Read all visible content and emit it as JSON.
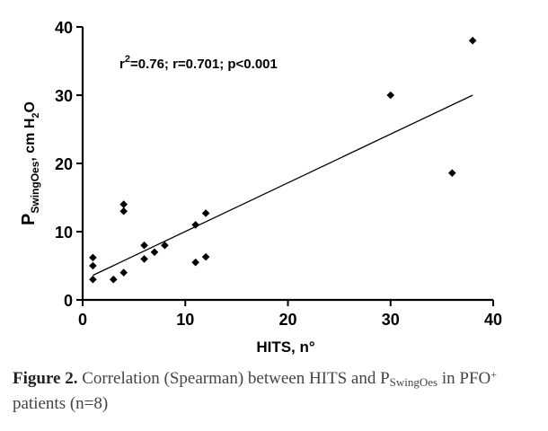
{
  "chart_data": {
    "type": "scatter",
    "xlabel": "HITS, n°",
    "ylabel": {
      "main": "P",
      "sub": "SwingOes",
      "unit_pre": ", cm H",
      "unit_sub": "2",
      "unit_post": "O"
    },
    "xlim": [
      0,
      40
    ],
    "ylim": [
      0,
      40
    ],
    "x_ticks": [
      0,
      10,
      20,
      30,
      40
    ],
    "y_ticks": [
      0,
      10,
      20,
      30,
      40
    ],
    "grid": false,
    "annotation": {
      "r2_prefix": "r",
      "r2_sup": "2",
      "text": "=0.76; r=0.701; p<0.001"
    },
    "points": [
      {
        "x": 1,
        "y": 6.2
      },
      {
        "x": 1,
        "y": 5.0
      },
      {
        "x": 1,
        "y": 3.0
      },
      {
        "x": 3,
        "y": 3.0
      },
      {
        "x": 4,
        "y": 4.0
      },
      {
        "x": 4,
        "y": 13.0
      },
      {
        "x": 4,
        "y": 14.0
      },
      {
        "x": 6,
        "y": 6.0
      },
      {
        "x": 6,
        "y": 8.0
      },
      {
        "x": 7,
        "y": 7.0
      },
      {
        "x": 8,
        "y": 8.0
      },
      {
        "x": 11,
        "y": 5.5
      },
      {
        "x": 11,
        "y": 11.0
      },
      {
        "x": 12,
        "y": 6.3
      },
      {
        "x": 12,
        "y": 12.7
      },
      {
        "x": 30,
        "y": 30.0
      },
      {
        "x": 36,
        "y": 18.6
      },
      {
        "x": 38,
        "y": 38.0
      }
    ],
    "regression_line": {
      "x": [
        1,
        38
      ],
      "y": [
        3.6,
        30.0
      ]
    }
  },
  "caption": {
    "label": "Figure 2.",
    "text_before": " Correlation (Spearman) between HITS and P",
    "sub": "SwingOes",
    "text_middle": " in PFO",
    "sup": "+",
    "text_after": " patients (n=8)"
  }
}
